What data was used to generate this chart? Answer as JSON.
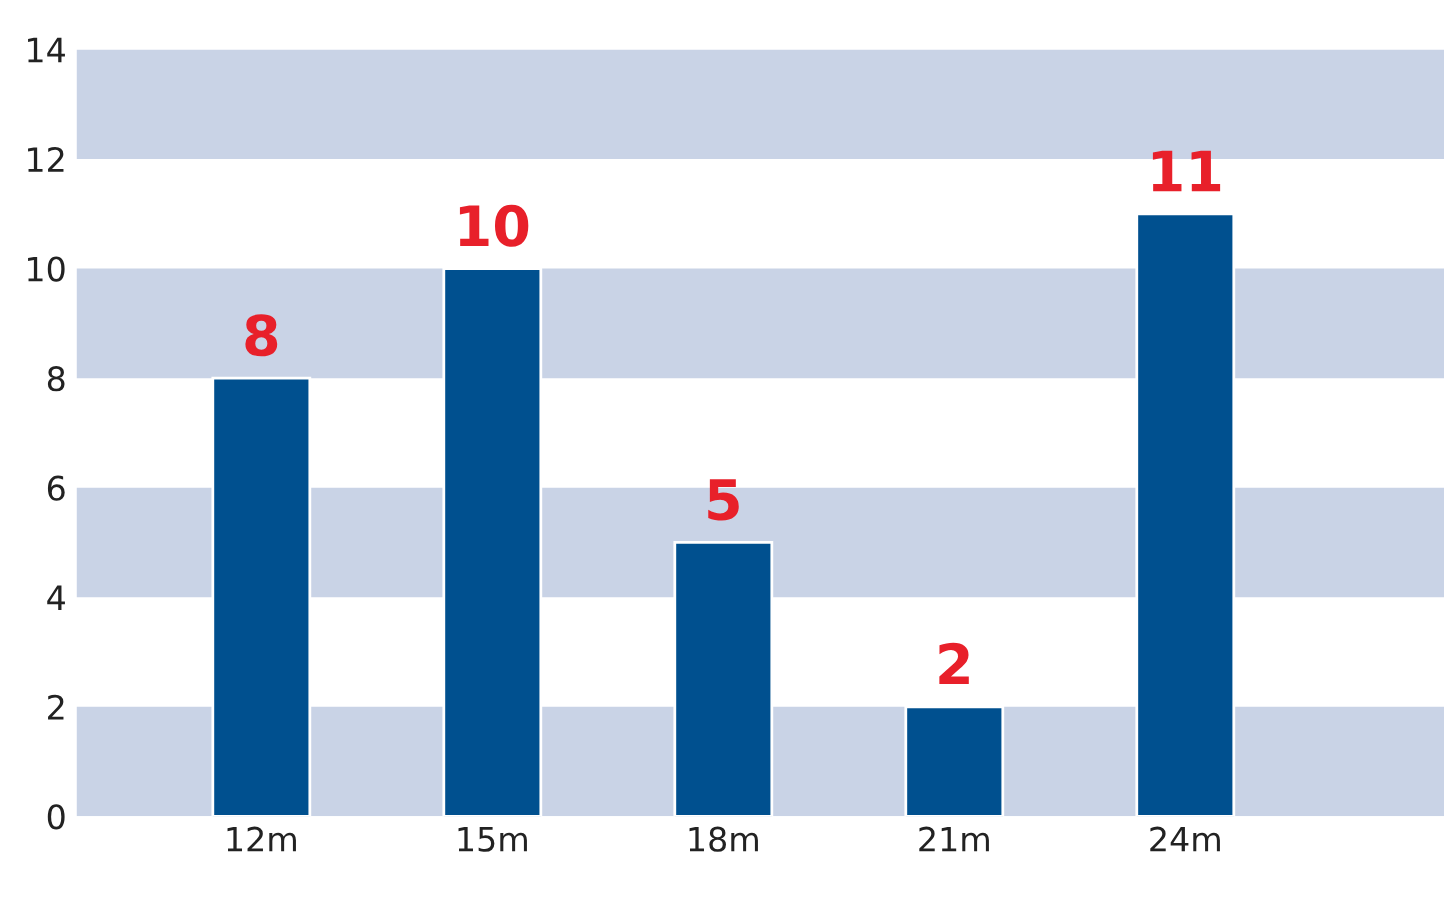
{
  "chart_data": {
    "type": "bar",
    "categories": [
      "12m",
      "15m",
      "18m",
      "21m",
      "24m"
    ],
    "values": [
      8,
      10,
      5,
      2,
      11
    ],
    "color": "#00508f",
    "data_labels": true,
    "ylim": [
      0,
      14
    ],
    "yticks": [
      0,
      2,
      4,
      6,
      8,
      10,
      12,
      14
    ],
    "grid": false,
    "bands": [
      {
        "axis": "y",
        "from": 0,
        "to": 2,
        "color": "#c9d3e6"
      },
      {
        "axis": "y",
        "from": 4,
        "to": 6,
        "color": "#c9d3e6"
      },
      {
        "axis": "y",
        "from": 8,
        "to": 10,
        "color": "#c9d3e6"
      },
      {
        "axis": "y",
        "from": 12,
        "to": 14,
        "color": "#c9d3e6"
      }
    ]
  }
}
